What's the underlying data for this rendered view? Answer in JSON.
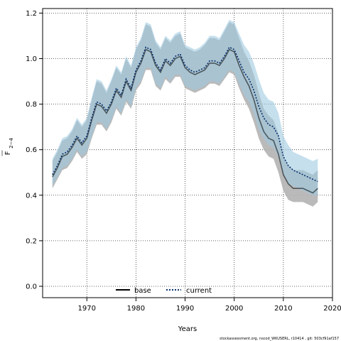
{
  "chart_data": {
    "type": "line",
    "xlabel": "Years",
    "ylabel_main": "F",
    "ylabel_sub": "2−4",
    "xlim": [
      1961,
      2020
    ],
    "ylim": [
      -0.05,
      1.22
    ],
    "xticks": [
      1970,
      1980,
      1990,
      2000,
      2010,
      2020
    ],
    "yticks": [
      0.0,
      0.2,
      0.4,
      0.6,
      0.8,
      1.0,
      1.2
    ],
    "grid": true,
    "legend_position": "bottom-center",
    "colors": {
      "base_line": "#000000",
      "base_band": "#b3b3b3",
      "current_line": "#08306b",
      "current_band": "#9ecae1",
      "overlap_band": "#9cbdd2"
    },
    "x": [
      1963,
      1964,
      1965,
      1966,
      1967,
      1968,
      1969,
      1970,
      1971,
      1972,
      1973,
      1974,
      1975,
      1976,
      1977,
      1978,
      1979,
      1980,
      1981,
      1982,
      1983,
      1984,
      1985,
      1986,
      1987,
      1988,
      1989,
      1990,
      1991,
      1992,
      1993,
      1994,
      1995,
      1996,
      1997,
      1998,
      1999,
      2000,
      2001,
      2002,
      2003,
      2004,
      2005,
      2006,
      2007,
      2008,
      2009,
      2010,
      2011,
      2012,
      2013,
      2014,
      2015,
      2016,
      2017
    ],
    "series": [
      {
        "name": "base",
        "values": [
          0.48,
          0.52,
          0.57,
          0.58,
          0.61,
          0.65,
          0.62,
          0.65,
          0.73,
          0.8,
          0.79,
          0.76,
          0.8,
          0.86,
          0.83,
          0.9,
          0.86,
          0.94,
          0.98,
          1.04,
          1.03,
          0.97,
          0.94,
          0.99,
          0.97,
          1.0,
          1.01,
          0.96,
          0.94,
          0.93,
          0.94,
          0.95,
          0.98,
          0.98,
          0.97,
          1.0,
          1.04,
          1.03,
          0.97,
          0.92,
          0.88,
          0.82,
          0.74,
          0.68,
          0.65,
          0.64,
          0.58,
          0.49,
          0.45,
          0.43,
          0.43,
          0.43,
          0.42,
          0.41,
          0.43
        ],
        "lower": [
          0.43,
          0.47,
          0.51,
          0.52,
          0.55,
          0.59,
          0.56,
          0.58,
          0.65,
          0.71,
          0.71,
          0.68,
          0.72,
          0.78,
          0.75,
          0.81,
          0.78,
          0.86,
          0.89,
          0.95,
          0.95,
          0.88,
          0.86,
          0.91,
          0.89,
          0.92,
          0.92,
          0.87,
          0.86,
          0.85,
          0.86,
          0.87,
          0.89,
          0.89,
          0.88,
          0.91,
          0.94,
          0.93,
          0.87,
          0.82,
          0.78,
          0.72,
          0.65,
          0.6,
          0.57,
          0.56,
          0.5,
          0.42,
          0.38,
          0.37,
          0.37,
          0.37,
          0.36,
          0.35,
          0.37
        ],
        "upper": [
          0.55,
          0.59,
          0.64,
          0.65,
          0.68,
          0.73,
          0.7,
          0.73,
          0.82,
          0.9,
          0.89,
          0.85,
          0.9,
          0.96,
          0.93,
          1.0,
          0.96,
          1.04,
          1.08,
          1.15,
          1.14,
          1.07,
          1.04,
          1.09,
          1.07,
          1.1,
          1.11,
          1.05,
          1.04,
          1.03,
          1.04,
          1.06,
          1.09,
          1.09,
          1.08,
          1.12,
          1.16,
          1.15,
          1.09,
          1.03,
          0.99,
          0.93,
          0.85,
          0.78,
          0.75,
          0.73,
          0.67,
          0.57,
          0.53,
          0.51,
          0.51,
          0.51,
          0.5,
          0.49,
          0.51
        ]
      },
      {
        "name": "current",
        "values": [
          0.49,
          0.53,
          0.58,
          0.59,
          0.62,
          0.66,
          0.63,
          0.66,
          0.74,
          0.81,
          0.8,
          0.77,
          0.81,
          0.87,
          0.84,
          0.91,
          0.87,
          0.95,
          0.99,
          1.05,
          1.04,
          0.98,
          0.95,
          1.0,
          0.98,
          1.01,
          1.02,
          0.97,
          0.95,
          0.94,
          0.95,
          0.96,
          0.99,
          0.99,
          0.98,
          1.01,
          1.05,
          1.04,
          0.99,
          0.94,
          0.91,
          0.86,
          0.79,
          0.74,
          0.71,
          0.7,
          0.66,
          0.57,
          0.53,
          0.51,
          0.5,
          0.49,
          0.48,
          0.47,
          0.46
        ],
        "lower": [
          0.44,
          0.48,
          0.52,
          0.53,
          0.56,
          0.6,
          0.57,
          0.59,
          0.66,
          0.72,
          0.72,
          0.69,
          0.73,
          0.79,
          0.76,
          0.82,
          0.79,
          0.87,
          0.9,
          0.96,
          0.96,
          0.89,
          0.87,
          0.92,
          0.9,
          0.93,
          0.93,
          0.88,
          0.87,
          0.86,
          0.87,
          0.88,
          0.9,
          0.9,
          0.89,
          0.92,
          0.95,
          0.94,
          0.89,
          0.84,
          0.81,
          0.76,
          0.69,
          0.65,
          0.62,
          0.61,
          0.57,
          0.49,
          0.45,
          0.44,
          0.43,
          0.42,
          0.41,
          0.4,
          0.4
        ],
        "upper": [
          0.56,
          0.6,
          0.65,
          0.66,
          0.69,
          0.74,
          0.71,
          0.74,
          0.83,
          0.91,
          0.9,
          0.86,
          0.91,
          0.97,
          0.94,
          1.01,
          0.97,
          1.05,
          1.09,
          1.16,
          1.15,
          1.08,
          1.05,
          1.1,
          1.08,
          1.11,
          1.12,
          1.06,
          1.05,
          1.04,
          1.05,
          1.07,
          1.1,
          1.1,
          1.09,
          1.13,
          1.17,
          1.16,
          1.11,
          1.06,
          1.03,
          0.98,
          0.91,
          0.85,
          0.82,
          0.81,
          0.76,
          0.66,
          0.62,
          0.59,
          0.58,
          0.57,
          0.56,
          0.55,
          0.56
        ]
      }
    ],
    "footer": "stockassessment.org, nscod_WKUSERL, r10414 , git: 503cf91af157"
  }
}
